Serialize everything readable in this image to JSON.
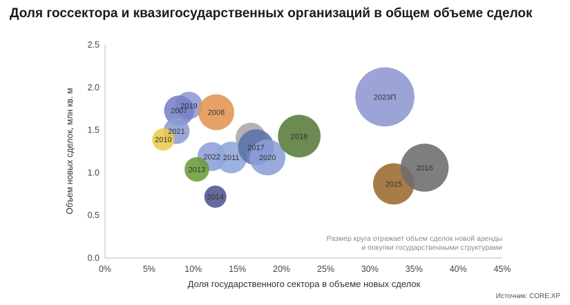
{
  "title": "Доля госсектора и квазигосударственных организаций в общем объеме сделок",
  "note_line1": "Размер круга отражает объем сделок новой аренды",
  "note_line2": "и покупки государственными структурами",
  "source": "Источник: CORE.XP",
  "chart_data": {
    "type": "scatter",
    "title": "Доля госсектора и квазигосударственных организаций в общем объеме сделок",
    "xlabel": "Доля государственного сектора в объеме новых сделок",
    "ylabel": "Объем новых сделок, млн кв. м",
    "xlim": [
      0,
      45
    ],
    "ylim": [
      0,
      2.5
    ],
    "xticks": [
      "0%",
      "5%",
      "10%",
      "15%",
      "20%",
      "25%",
      "30%",
      "35%",
      "40%",
      "45%"
    ],
    "yticks": [
      "0.0",
      "0.5",
      "1.0",
      "1.5",
      "2.0",
      "2.5"
    ],
    "grid": false,
    "size_meaning": "relative volume (bubble area)",
    "points": [
      {
        "label": "",
        "x": 16.5,
        "y": 1.41,
        "size": 48,
        "color": "#a9a9a9"
      },
      {
        "label": "2019",
        "x": 9.5,
        "y": 1.79,
        "size": 40,
        "color": "#8e9bd2"
      },
      {
        "label": "2007",
        "x": 8.4,
        "y": 1.73,
        "size": 48,
        "color": "#7582c6"
      },
      {
        "label": "2008",
        "x": 12.6,
        "y": 1.71,
        "size": 68,
        "color": "#e39452"
      },
      {
        "label": "2021",
        "x": 8.1,
        "y": 1.49,
        "size": 36,
        "color": "#8e9bd2"
      },
      {
        "label": "2010",
        "x": 6.6,
        "y": 1.39,
        "size": 26,
        "color": "#eccb4c"
      },
      {
        "label": "2022",
        "x": 12.1,
        "y": 1.19,
        "size": 44,
        "color": "#8e9fd8"
      },
      {
        "label": "2011",
        "x": 14.3,
        "y": 1.18,
        "size": 53,
        "color": "#90a6da"
      },
      {
        "label": "2013",
        "x": 10.4,
        "y": 1.04,
        "size": 32,
        "color": "#6b9c3a"
      },
      {
        "label": "2014",
        "x": 12.5,
        "y": 0.72,
        "size": 26,
        "color": "#4f558e"
      },
      {
        "label": "2017",
        "x": 17.1,
        "y": 1.3,
        "size": 68,
        "color": "#5a72aa"
      },
      {
        "label": "2020",
        "x": 18.4,
        "y": 1.18,
        "size": 68,
        "color": "#8c9ed8"
      },
      {
        "label": "2018",
        "x": 22.0,
        "y": 1.43,
        "size": 96,
        "color": "#567b3a"
      },
      {
        "label": "2023П",
        "x": 31.7,
        "y": 1.89,
        "size": 185,
        "color": "#8e97d2"
      },
      {
        "label": "2015",
        "x": 32.7,
        "y": 0.87,
        "size": 90,
        "color": "#9b6a2e"
      },
      {
        "label": "2016",
        "x": 36.2,
        "y": 1.06,
        "size": 122,
        "color": "#6c6c6c"
      }
    ]
  }
}
